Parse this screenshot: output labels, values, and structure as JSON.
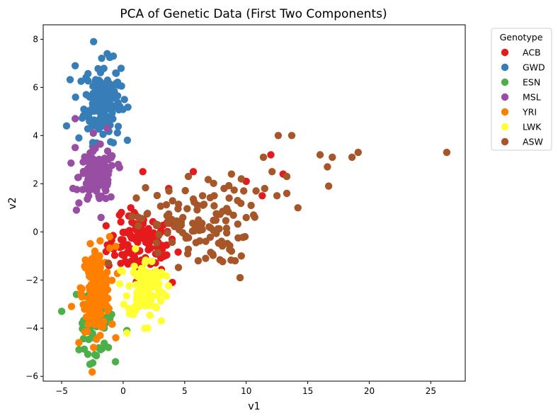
{
  "chart_data": {
    "type": "scatter",
    "title": "PCA of Genetic Data (First Two Components)",
    "xlabel": "v1",
    "ylabel": "v2",
    "xlim": [
      -6.5,
      27.8
    ],
    "ylim": [
      -6.2,
      8.6
    ],
    "xticks": [
      -5,
      0,
      5,
      10,
      15,
      20,
      25
    ],
    "yticks": [
      -6,
      -4,
      -2,
      0,
      2,
      4,
      6,
      8
    ],
    "grid": false,
    "legend": {
      "title": "Genotype",
      "placement": "outside-top-right"
    },
    "series": [
      {
        "name": "ACB",
        "color": "#e41a1c",
        "cluster": {
          "cx": 1.5,
          "cy": -0.5,
          "sx": 1.4,
          "sy": 0.6,
          "n": 110
        },
        "outliers": [
          [
            1.6,
            2.5
          ],
          [
            5.7,
            2.5
          ],
          [
            12.0,
            3.2
          ],
          [
            13.0,
            2.4
          ],
          [
            4.0,
            -2.1
          ],
          [
            3.7,
            1.8
          ],
          [
            11.3,
            1.5
          ],
          [
            10.0,
            2.1
          ],
          [
            -0.3,
            0.7
          ],
          [
            0.9,
            0.8
          ]
        ]
      },
      {
        "name": "GWD",
        "color": "#377eb8",
        "cluster": {
          "cx": -1.7,
          "cy": 5.4,
          "sx": 0.75,
          "sy": 0.8,
          "n": 170
        },
        "outliers": [
          [
            -2.4,
            7.9
          ],
          [
            -3.9,
            6.9
          ],
          [
            -4.6,
            4.4
          ],
          [
            -3.6,
            3.9
          ],
          [
            -0.8,
            3.7
          ],
          [
            0.1,
            5.5
          ],
          [
            -0.8,
            7.3
          ],
          [
            -1.3,
            7.4
          ]
        ]
      },
      {
        "name": "ESN",
        "color": "#4daf4a",
        "cluster": {
          "cx": -2.2,
          "cy": -3.6,
          "sx": 0.7,
          "sy": 0.7,
          "n": 70
        },
        "outliers": [
          [
            -5.0,
            -3.3
          ],
          [
            -2.7,
            -5.5
          ],
          [
            -2.3,
            -5.1
          ],
          [
            -1.2,
            -4.8
          ],
          [
            0.3,
            -4.1
          ],
          [
            -3.8,
            -2.6
          ]
        ]
      },
      {
        "name": "MSL",
        "color": "#984ea3",
        "cluster": {
          "cx": -2.1,
          "cy": 2.3,
          "sx": 0.75,
          "sy": 0.55,
          "n": 120
        },
        "outliers": [
          [
            -3.9,
            4.7
          ],
          [
            -1.3,
            4.3
          ],
          [
            -1.8,
            0.6
          ],
          [
            -3.9,
            3.5
          ],
          [
            -3.6,
            1.2
          ],
          [
            -0.4,
            2.8
          ]
        ]
      },
      {
        "name": "YRI",
        "color": "#ff7f00",
        "cluster": {
          "cx": -2.2,
          "cy": -2.4,
          "sx": 0.55,
          "sy": 0.85,
          "n": 170
        },
        "outliers": [
          [
            -4.2,
            -3.1
          ],
          [
            -3.6,
            -4.6
          ],
          [
            -2.4,
            -4.8
          ],
          [
            -0.6,
            -4.4
          ],
          [
            -2.3,
            -0.8
          ],
          [
            -0.6,
            -0.6
          ],
          [
            -1.1,
            -0.2
          ]
        ]
      },
      {
        "name": "LWK",
        "color": "#ffff33",
        "cluster": {
          "cx": 1.9,
          "cy": -2.3,
          "sx": 0.75,
          "sy": 0.6,
          "n": 110
        },
        "outliers": [
          [
            2.0,
            -4.0
          ],
          [
            0.3,
            -4.2
          ],
          [
            -0.2,
            -1.6
          ],
          [
            0.5,
            -3.4
          ],
          [
            3.1,
            -3.7
          ],
          [
            1.0,
            -0.7
          ]
        ]
      },
      {
        "name": "ASW",
        "color": "#a65628",
        "cluster": {
          "cx": 5.5,
          "cy": 0.3,
          "sx": 2.2,
          "sy": 0.8,
          "n": 110
        },
        "outliers": [
          [
            26.3,
            3.3
          ],
          [
            19.1,
            3.3
          ],
          [
            18.6,
            3.1
          ],
          [
            17.0,
            3.1
          ],
          [
            16.0,
            3.2
          ],
          [
            16.6,
            2.7
          ],
          [
            16.7,
            1.9
          ],
          [
            13.7,
            4.0
          ],
          [
            12.6,
            4.0
          ],
          [
            13.3,
            2.3
          ],
          [
            12.1,
            2.5
          ],
          [
            12.5,
            1.5
          ],
          [
            13.3,
            1.6
          ],
          [
            14.2,
            1.0
          ],
          [
            11.4,
            3.1
          ],
          [
            11.5,
            1.8
          ],
          [
            10.8,
            1.7
          ],
          [
            9.6,
            2.2
          ],
          [
            9.8,
            1.7
          ],
          [
            9.3,
            1.3
          ],
          [
            10.6,
            0.7
          ],
          [
            8.8,
            2.4
          ],
          [
            9.5,
            -1.9
          ],
          [
            9.6,
            -1.0
          ],
          [
            9.1,
            -1.2
          ],
          [
            8.8,
            -0.8
          ],
          [
            9.9,
            -0.2
          ],
          [
            6.1,
            -1.2
          ],
          [
            6.7,
            -1.1
          ],
          [
            -1.2,
            -1.3
          ],
          [
            5.3,
            2.3
          ],
          [
            7.4,
            1.5
          ],
          [
            8.2,
            1.8
          ]
        ]
      }
    ]
  }
}
